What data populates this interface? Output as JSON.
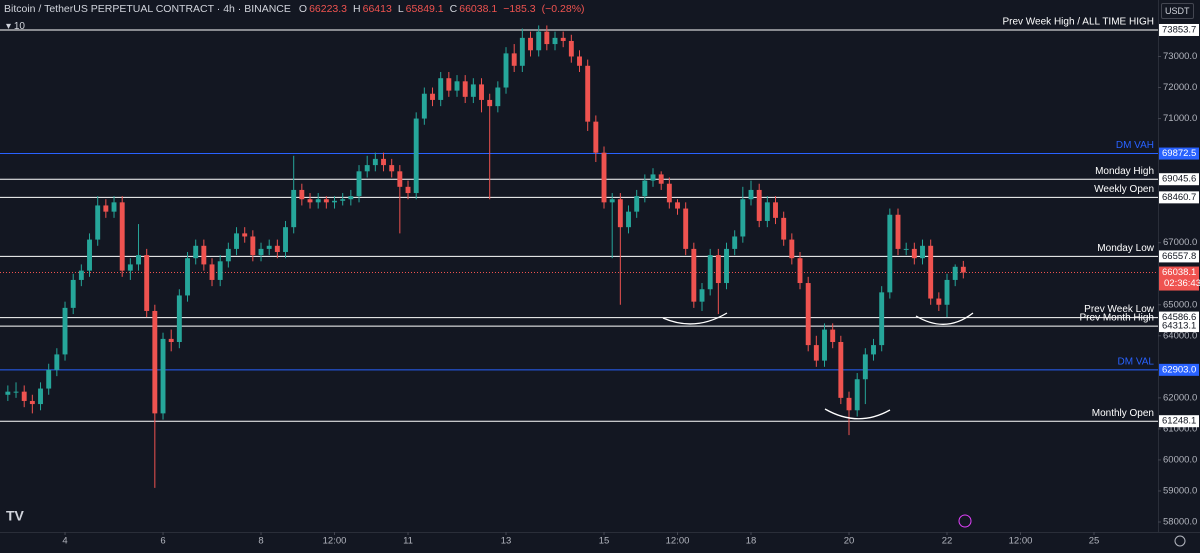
{
  "header": {
    "symbol": "Bitcoin / TetherUS PERPETUAL CONTRACT · 4h · BINANCE",
    "ohlc": [
      {
        "key": "O",
        "value": 66223.3
      },
      {
        "key": "H",
        "value": 66413.0
      },
      {
        "key": "L",
        "value": 65849.1
      },
      {
        "key": "C",
        "value": 66038.1
      }
    ],
    "change": {
      "value": -185.3,
      "label": "−185.3"
    },
    "change_pct": {
      "value": -0.28,
      "label": "(−0.28%)"
    },
    "indicator": "10",
    "currency": "USDT"
  },
  "chart_data": {
    "type": "candlestick",
    "background": "#131722",
    "up_color": "#26a69a",
    "down_color": "#ef5350",
    "grid": false,
    "xlim": [
      2.673,
      26.306
    ],
    "xticks": [
      4,
      6,
      8,
      {
        "value": 9.5,
        "label": "12:00"
      },
      11,
      13,
      15,
      {
        "value": 16.5,
        "label": "12:00"
      },
      18,
      20,
      22,
      {
        "value": 23.5,
        "label": "12:00"
      },
      25
    ],
    "ylim": [
      57710,
      74820
    ],
    "yticks": [
      {
        "value": 58000,
        "label": "58000.0"
      },
      {
        "value": 59000,
        "label": "59000.0"
      },
      {
        "value": 60000,
        "label": "60000.0"
      },
      {
        "value": 61000,
        "label": "61000.0"
      },
      {
        "value": 62000,
        "label": "62000.0"
      },
      {
        "value": 64000,
        "label": "64000.0"
      },
      {
        "value": 65000,
        "label": "65000.0"
      },
      {
        "value": 67000,
        "label": "67000.0"
      },
      {
        "value": 71000,
        "label": "71000.0"
      },
      {
        "value": 72000,
        "label": "72000.0"
      },
      {
        "value": 73000,
        "label": "73000.0"
      }
    ],
    "x": [
      2.833,
      3,
      3.167,
      3.333,
      3.5,
      3.667,
      3.833,
      4,
      4.167,
      4.333,
      4.5,
      4.667,
      4.833,
      5,
      5.167,
      5.333,
      5.5,
      5.667,
      5.833,
      6,
      6.167,
      6.333,
      6.5,
      6.667,
      6.833,
      7,
      7.167,
      7.333,
      7.5,
      7.667,
      7.833,
      8,
      8.167,
      8.333,
      8.5,
      8.667,
      8.833,
      9,
      9.167,
      9.333,
      9.5,
      9.667,
      9.833,
      10,
      10.167,
      10.333,
      10.5,
      10.667,
      10.833,
      11,
      11.167,
      11.333,
      11.5,
      11.667,
      11.833,
      12,
      12.167,
      12.333,
      12.5,
      12.667,
      12.833,
      13,
      13.167,
      13.333,
      13.5,
      13.667,
      13.833,
      14,
      14.167,
      14.333,
      14.5,
      14.667,
      14.833,
      15,
      15.167,
      15.333,
      15.5,
      15.667,
      15.833,
      16,
      16.167,
      16.333,
      16.5,
      16.667,
      16.833,
      17,
      17.167,
      17.333,
      17.5,
      17.667,
      17.833,
      18,
      18.167,
      18.333,
      18.5,
      18.667,
      18.833,
      19,
      19.167,
      19.333,
      19.5,
      19.667,
      19.833,
      20,
      20.167,
      20.333,
      20.5,
      20.667,
      20.833,
      21,
      21.167,
      21.333,
      21.5,
      21.667,
      21.833,
      22,
      22.167,
      22.333
    ],
    "candles": [
      [
        62100,
        62400,
        61900,
        62200
      ],
      [
        62200,
        62500,
        62000,
        62200
      ],
      [
        62200,
        62400,
        61700,
        61900
      ],
      [
        61900,
        62100,
        61500,
        61800
      ],
      [
        61800,
        62500,
        61600,
        62300
      ],
      [
        62300,
        63100,
        62100,
        62900
      ],
      [
        62900,
        63600,
        62700,
        63400
      ],
      [
        63400,
        65100,
        63200,
        64900
      ],
      [
        64900,
        66000,
        64700,
        65800
      ],
      [
        65800,
        66300,
        65600,
        66100
      ],
      [
        66100,
        67300,
        65900,
        67100
      ],
      [
        67100,
        68500,
        66900,
        68200
      ],
      [
        68200,
        68400,
        67800,
        68000
      ],
      [
        68000,
        68500,
        67800,
        68300
      ],
      [
        68300,
        68500,
        65900,
        66100
      ],
      [
        66100,
        66500,
        65800,
        66300
      ],
      [
        66300,
        67600,
        66100,
        66600
      ],
      [
        66600,
        66800,
        64600,
        64800
      ],
      [
        64800,
        65000,
        59100,
        61500
      ],
      [
        61500,
        64100,
        61300,
        63900
      ],
      [
        63900,
        64200,
        63500,
        63800
      ],
      [
        63800,
        65500,
        63600,
        65300
      ],
      [
        65300,
        66700,
        65100,
        66500
      ],
      [
        66500,
        67100,
        66300,
        66900
      ],
      [
        66900,
        67100,
        66100,
        66300
      ],
      [
        66300,
        66500,
        65600,
        65800
      ],
      [
        65800,
        66600,
        65600,
        66400
      ],
      [
        66400,
        67000,
        66200,
        66800
      ],
      [
        66800,
        67500,
        66600,
        67300
      ],
      [
        67300,
        67500,
        67000,
        67200
      ],
      [
        67200,
        67400,
        66400,
        66600
      ],
      [
        66600,
        67000,
        66400,
        66800
      ],
      [
        66800,
        67100,
        66600,
        66900
      ],
      [
        66900,
        67100,
        66500,
        66700
      ],
      [
        66700,
        67700,
        66500,
        67500
      ],
      [
        67500,
        69800,
        67300,
        68700
      ],
      [
        68700,
        68900,
        68200,
        68400
      ],
      [
        68400,
        68600,
        68100,
        68300
      ],
      [
        68300,
        68600,
        68100,
        68400
      ],
      [
        68400,
        68500,
        68100,
        68300
      ],
      [
        68300,
        68500,
        68100,
        68350
      ],
      [
        68350,
        68600,
        68200,
        68400
      ],
      [
        68400,
        68700,
        68200,
        68500
      ],
      [
        68500,
        69500,
        68300,
        69300
      ],
      [
        69300,
        69800,
        69100,
        69500
      ],
      [
        69500,
        69900,
        69300,
        69700
      ],
      [
        69700,
        69900,
        69300,
        69500
      ],
      [
        69500,
        69700,
        69100,
        69300
      ],
      [
        69300,
        69500,
        67300,
        68800
      ],
      [
        68800,
        69000,
        68400,
        68600
      ],
      [
        68600,
        71200,
        68400,
        71000
      ],
      [
        71000,
        72000,
        70800,
        71800
      ],
      [
        71800,
        72000,
        71400,
        71600
      ],
      [
        71600,
        72500,
        71400,
        72300
      ],
      [
        72300,
        72500,
        71700,
        71900
      ],
      [
        71900,
        72400,
        71700,
        72200
      ],
      [
        72200,
        72400,
        71500,
        71700
      ],
      [
        71700,
        72300,
        71500,
        72100
      ],
      [
        72100,
        72300,
        71200,
        71600
      ],
      [
        71600,
        71800,
        68400,
        71400
      ],
      [
        71400,
        72200,
        71200,
        72000
      ],
      [
        72000,
        73300,
        71800,
        73100
      ],
      [
        73100,
        73400,
        72500,
        72700
      ],
      [
        72700,
        73900,
        72500,
        73600
      ],
      [
        73600,
        73800,
        73000,
        73200
      ],
      [
        73200,
        74000,
        73000,
        73800
      ],
      [
        73800,
        74000,
        73200,
        73400
      ],
      [
        73400,
        73800,
        73200,
        73600
      ],
      [
        73600,
        73800,
        73300,
        73500
      ],
      [
        73500,
        73700,
        72800,
        73000
      ],
      [
        73000,
        73200,
        72500,
        72700
      ],
      [
        72700,
        72900,
        70600,
        70900
      ],
      [
        70900,
        71100,
        69600,
        69900
      ],
      [
        69900,
        70100,
        68100,
        68300
      ],
      [
        68300,
        68600,
        66500,
        68400
      ],
      [
        68400,
        68600,
        65000,
        67500
      ],
      [
        67500,
        68200,
        67300,
        68000
      ],
      [
        68000,
        68700,
        67800,
        68500
      ],
      [
        68500,
        69200,
        68300,
        69000
      ],
      [
        69000,
        69400,
        68800,
        69200
      ],
      [
        69200,
        69300,
        68700,
        68900
      ],
      [
        68900,
        69100,
        68100,
        68300
      ],
      [
        68300,
        68400,
        67900,
        68100
      ],
      [
        68100,
        68300,
        66600,
        66800
      ],
      [
        66800,
        67000,
        64900,
        65100
      ],
      [
        65100,
        65700,
        64800,
        65500
      ],
      [
        65500,
        66800,
        65300,
        66600
      ],
      [
        66600,
        66800,
        64700,
        65700
      ],
      [
        65700,
        67000,
        65500,
        66800
      ],
      [
        66800,
        67400,
        66600,
        67200
      ],
      [
        67200,
        68800,
        67000,
        68400
      ],
      [
        68400,
        69000,
        68200,
        68700
      ],
      [
        68700,
        68900,
        67500,
        67700
      ],
      [
        67700,
        68500,
        67500,
        68300
      ],
      [
        68300,
        68500,
        67600,
        67800
      ],
      [
        67800,
        68000,
        66900,
        67100
      ],
      [
        67100,
        67300,
        66300,
        66500
      ],
      [
        66500,
        66700,
        65500,
        65700
      ],
      [
        65700,
        65900,
        63500,
        63700
      ],
      [
        63700,
        64000,
        63000,
        63200
      ],
      [
        63200,
        64400,
        63000,
        64200
      ],
      [
        64200,
        64400,
        63600,
        63800
      ],
      [
        63800,
        64000,
        61800,
        62000
      ],
      [
        62000,
        62200,
        60800,
        61600
      ],
      [
        61600,
        62800,
        61400,
        62600
      ],
      [
        62600,
        63600,
        61800,
        63400
      ],
      [
        63400,
        63900,
        63200,
        63700
      ],
      [
        63700,
        65600,
        63500,
        65400
      ],
      [
        65400,
        68100,
        65200,
        67900
      ],
      [
        67900,
        68100,
        66600,
        66800
      ],
      [
        66800,
        67000,
        66600,
        66800
      ],
      [
        66800,
        67000,
        66300,
        66500
      ],
      [
        66500,
        67100,
        66300,
        66900
      ],
      [
        66900,
        67100,
        65000,
        65200
      ],
      [
        65200,
        65400,
        64800,
        65000
      ],
      [
        65000,
        66000,
        64600,
        65800
      ],
      [
        65800,
        66300,
        65600,
        66223.3
      ],
      [
        66223.3,
        66413,
        65849.1,
        66038.1
      ]
    ],
    "levels": [
      {
        "label": "Prev Week High / ALL TIME HIGH",
        "price": 73853.7,
        "color": "#ffffff"
      },
      {
        "label": "DM VAH",
        "price": 69872.5,
        "color": "#2962ff"
      },
      {
        "label": "Monday High",
        "price": 69045.6,
        "color": "#ffffff"
      },
      {
        "label": "Weekly Open",
        "price": 68460.7,
        "color": "#ffffff"
      },
      {
        "label": "Monday Low",
        "price": 66557.8,
        "color": "#ffffff"
      },
      {
        "label": "Prev Week Low",
        "price": 64586.6,
        "color": "#ffffff"
      },
      {
        "label": "Prev Month High",
        "price": 64313.1,
        "color": "#ffffff"
      },
      {
        "label": "DM VAL",
        "price": {
          "value": 62903,
          "label": "62903.0"
        },
        "color": "#2962ff"
      },
      {
        "label": "Monthly Open",
        "price": 61248.1,
        "color": "#ffffff"
      }
    ],
    "current_price": {
      "value": 66038.1,
      "countdown": "02:36:43"
    }
  }
}
